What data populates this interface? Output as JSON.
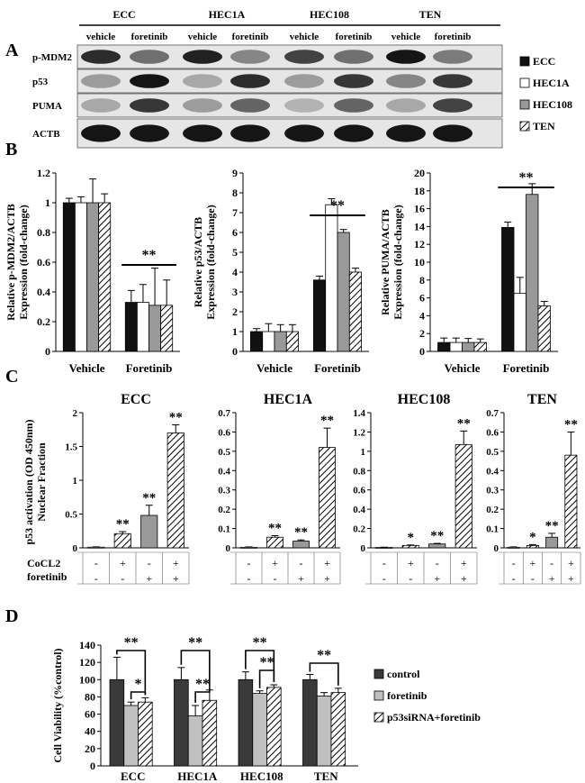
{
  "panel_labels": {
    "a": "A",
    "b": "B",
    "c": "C",
    "d": "D"
  },
  "colors": {
    "black": "#111111",
    "white": "#ffffff",
    "gray": "#999999",
    "dark": "#3a3a3a",
    "light": "#c0c0c0"
  },
  "blot": {
    "cell_lines": [
      "ECC",
      "HEC1A",
      "HEC108",
      "TEN"
    ],
    "treatments": [
      "vehicle",
      "foretinib",
      "vehicle",
      "foretinib",
      "vehicle",
      "foretinib",
      "vehicle",
      "foretinib"
    ],
    "rows": [
      "p-MDM2",
      "p53",
      "PUMA",
      "ACTB"
    ],
    "legend": [
      "ECC",
      "HEC1A",
      "HEC108",
      "TEN"
    ]
  },
  "chart_data": [
    {
      "type": "bar",
      "categories": [
        "Vehicle",
        "Foretinib"
      ],
      "ylabel": "Relative p-MDM2/ACTB Expression (fold-change)",
      "ylim": [
        0,
        1.2
      ],
      "yticks": [
        "0",
        "0.2",
        "0.4",
        "0.6",
        "0.8",
        "1",
        "1.2"
      ],
      "series": [
        {
          "name": "ECC",
          "values": [
            1.0,
            0.33
          ],
          "err": [
            0.03,
            0.08
          ]
        },
        {
          "name": "HEC1A",
          "values": [
            1.0,
            0.33
          ],
          "err": [
            0.04,
            0.12
          ]
        },
        {
          "name": "HEC108",
          "values": [
            1.0,
            0.31
          ],
          "err": [
            0.16,
            0.25
          ]
        },
        {
          "name": "TEN",
          "values": [
            1.0,
            0.31
          ],
          "err": [
            0.06,
            0.17
          ]
        }
      ],
      "annotation": "**"
    },
    {
      "type": "bar",
      "categories": [
        "Vehicle",
        "Foretinib"
      ],
      "ylabel": "Relative p53/ACTB Expression (fold-change)",
      "ylim": [
        0,
        9
      ],
      "yticks": [
        "0",
        "1",
        "2",
        "3",
        "4",
        "5",
        "6",
        "7",
        "8",
        "9"
      ],
      "series": [
        {
          "name": "ECC",
          "values": [
            1.0,
            3.6
          ],
          "err": [
            0.15,
            0.2
          ]
        },
        {
          "name": "HEC1A",
          "values": [
            1.0,
            7.4
          ],
          "err": [
            0.4,
            0.3
          ]
        },
        {
          "name": "HEC108",
          "values": [
            1.0,
            6.0
          ],
          "err": [
            0.35,
            0.15
          ]
        },
        {
          "name": "TEN",
          "values": [
            1.0,
            4.0
          ],
          "err": [
            0.35,
            0.2
          ]
        }
      ],
      "annotation": "**"
    },
    {
      "type": "bar",
      "categories": [
        "Vehicle",
        "Foretinib"
      ],
      "ylabel": "Relative PUMA/ACTB Expression (fold-change)",
      "ylim": [
        0,
        20
      ],
      "yticks": [
        "0",
        "2",
        "4",
        "6",
        "8",
        "10",
        "12",
        "14",
        "16",
        "18",
        "20"
      ],
      "series": [
        {
          "name": "ECC",
          "values": [
            1.0,
            13.9
          ],
          "err": [
            0.5,
            0.6
          ]
        },
        {
          "name": "HEC1A",
          "values": [
            1.0,
            6.5
          ],
          "err": [
            0.5,
            1.8
          ]
        },
        {
          "name": "HEC108",
          "values": [
            1.0,
            17.6
          ],
          "err": [
            0.45,
            1.2
          ]
        },
        {
          "name": "TEN",
          "values": [
            1.0,
            5.1
          ],
          "err": [
            0.4,
            0.5
          ]
        }
      ],
      "annotation": "**"
    },
    {
      "type": "bar",
      "title": "ECC",
      "ylabel": "p53 activation (OD 450nm) Nuclear Fraction",
      "ylim": [
        0,
        2
      ],
      "yticks": [
        "0",
        "0.5",
        "1",
        "1.5",
        "2"
      ],
      "values": [
        0.01,
        0.21,
        0.48,
        1.7
      ],
      "err": [
        0.005,
        0.03,
        0.15,
        0.12
      ],
      "stars": [
        "",
        "**",
        "**",
        "**"
      ]
    },
    {
      "type": "bar",
      "title": "HEC1A",
      "ylim": [
        0,
        0.7
      ],
      "yticks": [
        "0",
        "0.1",
        "0.2",
        "0.3",
        "0.4",
        "0.5",
        "0.6",
        "0.7"
      ],
      "values": [
        0.003,
        0.055,
        0.035,
        0.52
      ],
      "err": [
        0.002,
        0.008,
        0.006,
        0.1
      ],
      "stars": [
        "",
        "**",
        "**",
        "**"
      ]
    },
    {
      "type": "bar",
      "title": "HEC108",
      "ylim": [
        0,
        1.4
      ],
      "yticks": [
        "0",
        "0.2",
        "0.4",
        "0.6",
        "0.8",
        "1",
        "1.2",
        "1.4"
      ],
      "values": [
        0.005,
        0.025,
        0.04,
        1.07
      ],
      "err": [
        0.002,
        0.005,
        0.006,
        0.14
      ],
      "stars": [
        "",
        "*",
        "**",
        "**"
      ]
    },
    {
      "type": "bar",
      "title": "TEN",
      "ylim": [
        0,
        0.7
      ],
      "yticks": [
        "0",
        "0.1",
        "0.2",
        "0.3",
        "0.4",
        "0.5",
        "0.6",
        "0.7"
      ],
      "values": [
        0.003,
        0.012,
        0.055,
        0.48
      ],
      "err": [
        0.002,
        0.005,
        0.02,
        0.12
      ],
      "stars": [
        "",
        "*",
        "**",
        "**"
      ]
    },
    {
      "type": "bar",
      "categories": [
        "ECC",
        "HEC1A",
        "HEC108",
        "TEN"
      ],
      "ylabel": "Cell Viability (%control)",
      "ylim": [
        0,
        140
      ],
      "yticks": [
        "0",
        "20",
        "40",
        "60",
        "80",
        "100",
        "120",
        "140"
      ],
      "series": [
        {
          "name": "control",
          "values": [
            100,
            100,
            100,
            100
          ],
          "err": [
            26,
            14,
            9,
            6
          ]
        },
        {
          "name": "foretinib",
          "values": [
            70,
            58,
            84,
            81
          ],
          "err": [
            4,
            12,
            3,
            4
          ]
        },
        {
          "name": "p53siRNA+foretinib",
          "values": [
            74,
            76,
            91,
            85
          ],
          "err": [
            5,
            12,
            3,
            5
          ]
        }
      ]
    }
  ],
  "condition_table": {
    "row_labels": [
      "CoCL2",
      "foretinib"
    ],
    "cocl2": [
      "-",
      "+",
      "-",
      "+"
    ],
    "foretinib": [
      "-",
      "-",
      "+",
      "+"
    ]
  },
  "stars": {
    "double": "**",
    "single": "*"
  }
}
